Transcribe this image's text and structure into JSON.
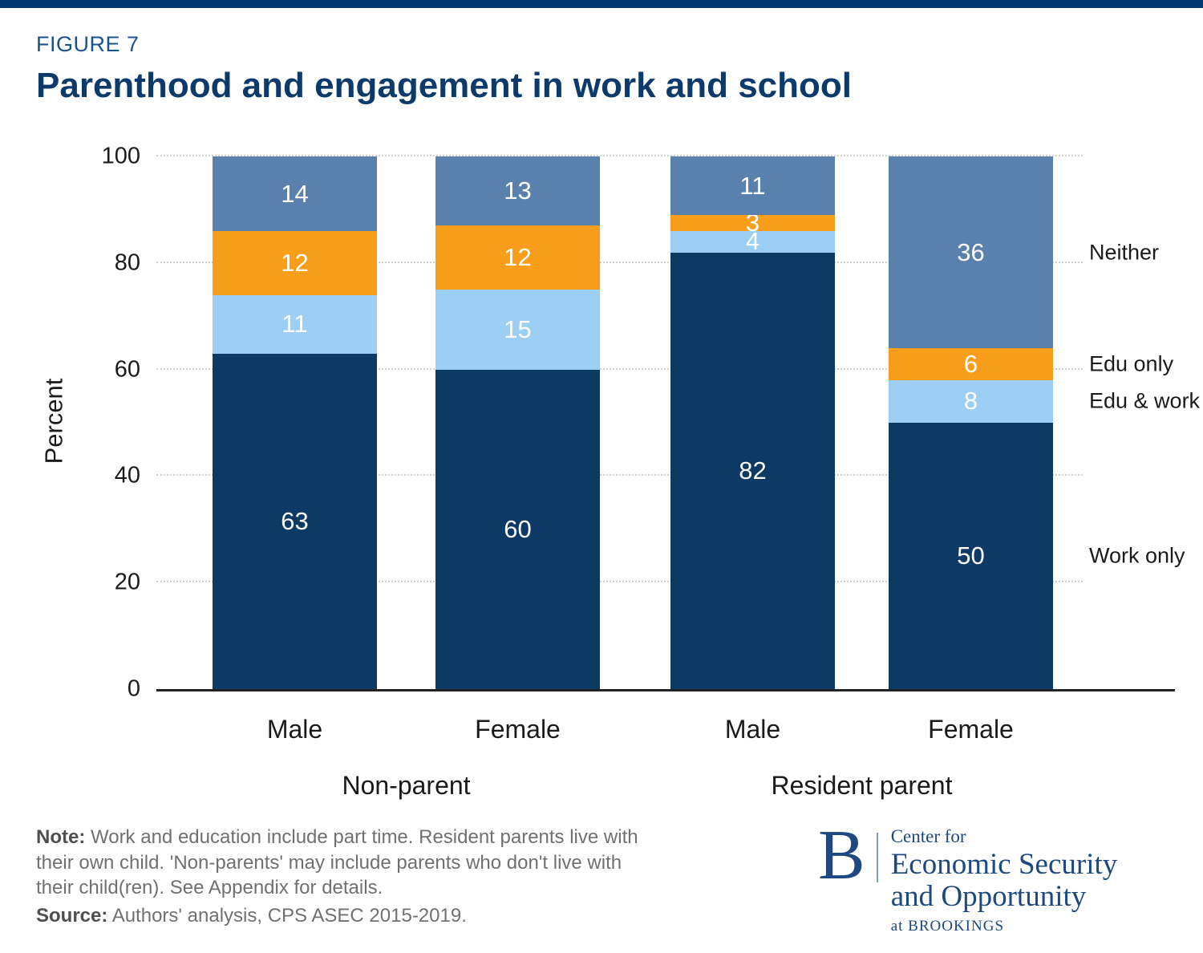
{
  "page": {
    "figure_label": "FIGURE 7",
    "title": "Parenthood and engagement in work and school",
    "accent_color": "#003a70"
  },
  "chart_data": {
    "type": "bar",
    "subtype": "stacked-vertical",
    "ylabel": "Percent",
    "ylim": [
      0,
      100
    ],
    "yticks": [
      0,
      20,
      40,
      60,
      80,
      100
    ],
    "grid": "dotted-horizontal",
    "legend_position": "right-of-last-bar",
    "groups": [
      "Non-parent",
      "Resident parent"
    ],
    "categories": [
      "Male",
      "Female",
      "Male",
      "Female"
    ],
    "category_groups": [
      0,
      0,
      1,
      1
    ],
    "series": [
      {
        "name": "Work only",
        "color": "#0d3965",
        "values": [
          63,
          60,
          82,
          50
        ]
      },
      {
        "name": "Edu & work",
        "color": "#9dcff5",
        "values": [
          11,
          15,
          4,
          8
        ]
      },
      {
        "name": "Edu only",
        "color": "#f99e1b",
        "values": [
          12,
          12,
          3,
          6
        ]
      },
      {
        "name": "Neither",
        "color": "#5a80ad",
        "values": [
          14,
          13,
          11,
          36
        ]
      }
    ]
  },
  "footer": {
    "note_label": "Note:",
    "note_lines": [
      "Work and education include part time. Resident parents live with",
      "their own child. 'Non-parents' may include parents who don't live with",
      "their child(ren). See Appendix for details."
    ],
    "source_label": "Source:",
    "source_text": "Authors' analysis, CPS ASEC 2015-2019."
  },
  "logo": {
    "letter": "B",
    "line1": "Center for",
    "line2": "Economic Security",
    "line3": "and Opportunity",
    "line4": "at BROOKINGS"
  }
}
